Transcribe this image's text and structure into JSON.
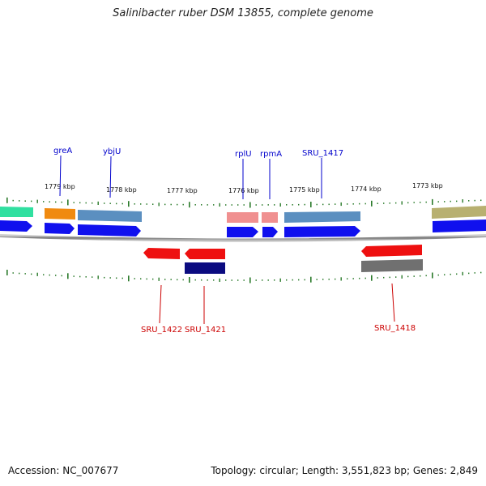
{
  "title": "Salinibacter ruber DSM 13855, complete genome",
  "accession": "Accession: NC_007677",
  "metadata": "Topology: circular; Length: 3,551,823 bp; Genes: 2,849",
  "scale_labels": [
    "1779 kbp",
    "1778 kbp",
    "1777 kbp",
    "1776 kbp",
    "1775 kbp",
    "1774 kbp",
    "1773 kbp"
  ],
  "label_colors": {
    "forward": "#0000cc",
    "reverse": "#cc0000"
  },
  "forward_gene_labels": [
    "greA",
    "ybjU",
    "rplU",
    "rpmA",
    "SRU_1417"
  ],
  "reverse_gene_labels": [
    "SRU_1422",
    "SRU_1421",
    "SRU_1418"
  ],
  "feature_colors": {
    "cds_blue": "#1010ee",
    "steelblue": "#5b8fc0",
    "orange": "#f08a10",
    "salmon": "#f09090",
    "teal": "#30e0a0",
    "olive": "#b8b070",
    "red": "#ee1010",
    "navy": "#0b0b80",
    "gray": "#707070",
    "backbone": "#909090",
    "tick": "#2a7a2a"
  }
}
